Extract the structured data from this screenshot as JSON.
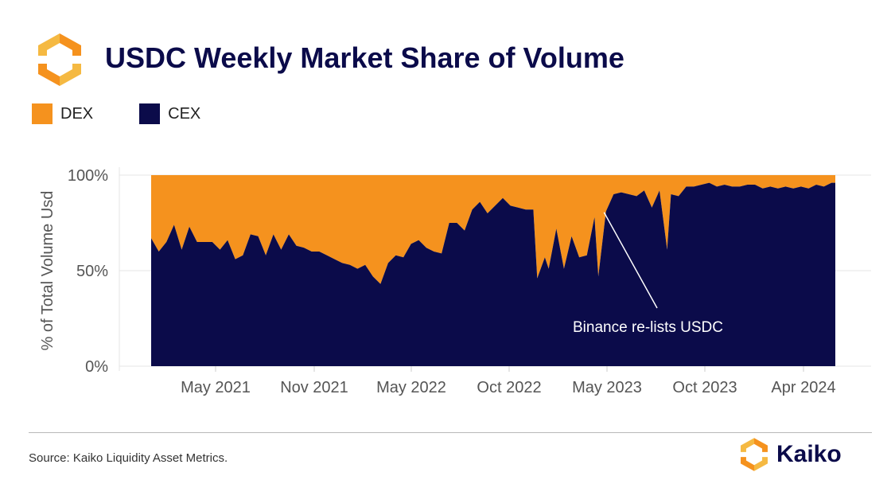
{
  "header": {
    "title": "USDC Weekly Market Share of Volume",
    "logo_icon": "kaiko-logo-icon"
  },
  "legend": [
    {
      "label": "DEX",
      "color": "#f5921e"
    },
    {
      "label": "CEX",
      "color": "#0b0b4a"
    }
  ],
  "footer": {
    "source": "Source: Kaiko Liquidity Asset Metrics.",
    "brand": "Kaiko"
  },
  "chart_data": {
    "type": "area",
    "stacked": true,
    "normalized_percent": true,
    "ylabel": "% of Total Volume Usd",
    "xlabel": "",
    "ylim": [
      0,
      100
    ],
    "yticks": [
      "0%",
      "50%",
      "100%"
    ],
    "xticks": [
      "May 2021",
      "Nov 2021",
      "May 2022",
      "Oct 2022",
      "May 2023",
      "Oct 2023",
      "Apr 2024"
    ],
    "xrange": [
      "2021-01-04",
      "2024-06-10"
    ],
    "grid": true,
    "legend_position": "top-left",
    "annotation": {
      "text": "Binance re-lists USDC",
      "date": "2023-03-27",
      "value": 78
    },
    "series": [
      {
        "name": "CEX",
        "color": "#0b0b4a",
        "points": [
          [
            "2021-01-04",
            67
          ],
          [
            "2021-01-18",
            60
          ],
          [
            "2021-02-01",
            65
          ],
          [
            "2021-02-15",
            74
          ],
          [
            "2021-03-01",
            61
          ],
          [
            "2021-03-15",
            73
          ],
          [
            "2021-03-29",
            65
          ],
          [
            "2021-04-12",
            65
          ],
          [
            "2021-04-26",
            65
          ],
          [
            "2021-05-10",
            61
          ],
          [
            "2021-05-24",
            66
          ],
          [
            "2021-06-07",
            56
          ],
          [
            "2021-06-21",
            58
          ],
          [
            "2021-07-05",
            69
          ],
          [
            "2021-07-19",
            68
          ],
          [
            "2021-08-02",
            58
          ],
          [
            "2021-08-16",
            69
          ],
          [
            "2021-08-30",
            61
          ],
          [
            "2021-09-13",
            69
          ],
          [
            "2021-09-27",
            63
          ],
          [
            "2021-10-11",
            62
          ],
          [
            "2021-10-25",
            60
          ],
          [
            "2021-11-08",
            60
          ],
          [
            "2021-11-22",
            58
          ],
          [
            "2021-12-06",
            56
          ],
          [
            "2021-12-20",
            54
          ],
          [
            "2022-01-03",
            53
          ],
          [
            "2022-01-17",
            51
          ],
          [
            "2022-01-31",
            53
          ],
          [
            "2022-02-14",
            47
          ],
          [
            "2022-02-28",
            43
          ],
          [
            "2022-03-14",
            54
          ],
          [
            "2022-03-28",
            58
          ],
          [
            "2022-04-11",
            57
          ],
          [
            "2022-04-25",
            64
          ],
          [
            "2022-05-09",
            66
          ],
          [
            "2022-05-23",
            62
          ],
          [
            "2022-06-06",
            60
          ],
          [
            "2022-06-20",
            59
          ],
          [
            "2022-07-04",
            75
          ],
          [
            "2022-07-18",
            75
          ],
          [
            "2022-08-01",
            71
          ],
          [
            "2022-08-15",
            82
          ],
          [
            "2022-08-29",
            86
          ],
          [
            "2022-09-12",
            80
          ],
          [
            "2022-09-26",
            84
          ],
          [
            "2022-10-10",
            88
          ],
          [
            "2022-10-24",
            84
          ],
          [
            "2022-11-07",
            83
          ],
          [
            "2022-11-21",
            82
          ],
          [
            "2022-12-05",
            82
          ],
          [
            "2022-12-12",
            46
          ],
          [
            "2022-12-26",
            57
          ],
          [
            "2023-01-02",
            51
          ],
          [
            "2023-01-16",
            72
          ],
          [
            "2023-01-30",
            51
          ],
          [
            "2023-02-13",
            68
          ],
          [
            "2023-02-27",
            57
          ],
          [
            "2023-03-13",
            58
          ],
          [
            "2023-03-27",
            78
          ],
          [
            "2023-04-03",
            47
          ],
          [
            "2023-04-17",
            81
          ],
          [
            "2023-05-01",
            90
          ],
          [
            "2023-05-15",
            91
          ],
          [
            "2023-05-29",
            90
          ],
          [
            "2023-06-12",
            89
          ],
          [
            "2023-06-26",
            92
          ],
          [
            "2023-07-10",
            83
          ],
          [
            "2023-07-24",
            92
          ],
          [
            "2023-08-07",
            61
          ],
          [
            "2023-08-14",
            90
          ],
          [
            "2023-08-28",
            89
          ],
          [
            "2023-09-11",
            94
          ],
          [
            "2023-09-25",
            94
          ],
          [
            "2023-10-09",
            95
          ],
          [
            "2023-10-23",
            96
          ],
          [
            "2023-11-06",
            94
          ],
          [
            "2023-11-20",
            95
          ],
          [
            "2023-12-04",
            94
          ],
          [
            "2023-12-18",
            94
          ],
          [
            "2024-01-01",
            95
          ],
          [
            "2024-01-15",
            95
          ],
          [
            "2024-01-29",
            93
          ],
          [
            "2024-02-12",
            94
          ],
          [
            "2024-02-26",
            93
          ],
          [
            "2024-03-11",
            94
          ],
          [
            "2024-03-25",
            93
          ],
          [
            "2024-04-08",
            94
          ],
          [
            "2024-04-22",
            93
          ],
          [
            "2024-05-06",
            95
          ],
          [
            "2024-05-20",
            94
          ],
          [
            "2024-06-03",
            96
          ],
          [
            "2024-06-10",
            96
          ]
        ]
      },
      {
        "name": "DEX",
        "color": "#f5921e",
        "complement_of": "CEX"
      }
    ]
  }
}
